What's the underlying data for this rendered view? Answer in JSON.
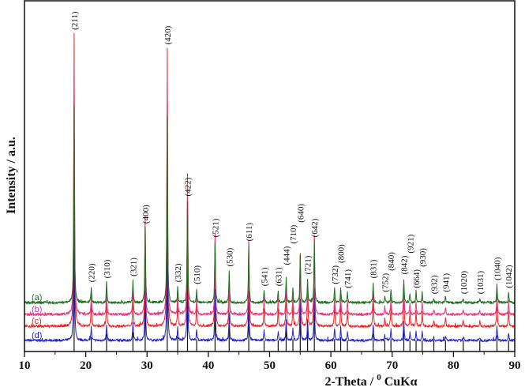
{
  "chart_data": {
    "type": "line",
    "title": "",
    "xlabel": "2-Theta / ⁰ CuKα",
    "xlabel_parts": {
      "pre": "2-Theta / ",
      "sup": "0",
      "post": " CuKα"
    },
    "ylabel": "Intensity / a.u.",
    "xlim": [
      10,
      90
    ],
    "ylim": [
      0,
      445
    ],
    "x_ticks": [
      10,
      20,
      30,
      40,
      50,
      60,
      70,
      80,
      90
    ],
    "x_minor_step": 5,
    "y_ticks": [],
    "grid": false,
    "legend": "inline-left",
    "series": [
      {
        "name": "(a)",
        "color": "#1d6e1d",
        "baseline": 62,
        "scale": 1.0
      },
      {
        "name": "(b)",
        "color": "#e23a7a",
        "label_color": "#cc33cc",
        "baseline": 47,
        "scale": 1.3
      },
      {
        "name": "(c)",
        "color": "#ee2222",
        "baseline": 32,
        "scale": 1.5
      },
      {
        "name": "(d)",
        "color": "#2222cc",
        "baseline": 14,
        "scale": 0.85
      }
    ],
    "reference_color": "#111111",
    "peaks": [
      {
        "hkl": "(211)",
        "two_theta": 18.1,
        "rel_intensity": 100
      },
      {
        "hkl": "(220)",
        "two_theta": 20.9,
        "rel_intensity": 8
      },
      {
        "hkl": "(310)",
        "two_theta": 23.4,
        "rel_intensity": 10
      },
      {
        "hkl": "(321)",
        "two_theta": 27.7,
        "rel_intensity": 11
      },
      {
        "hkl": "(400)",
        "two_theta": 29.7,
        "rel_intensity": 38
      },
      {
        "hkl": "(420)",
        "two_theta": 33.3,
        "rel_intensity": 95
      },
      {
        "hkl": "(332)",
        "two_theta": 35.0,
        "rel_intensity": 8
      },
      {
        "hkl": "(422)",
        "two_theta": 36.6,
        "rel_intensity": 52
      },
      {
        "hkl": "(510)",
        "two_theta": 38.1,
        "rel_intensity": 7
      },
      {
        "hkl": "(521)",
        "two_theta": 41.1,
        "rel_intensity": 31
      },
      {
        "hkl": "(530)",
        "two_theta": 43.4,
        "rel_intensity": 16
      },
      {
        "hkl": "(611)",
        "two_theta": 46.6,
        "rel_intensity": 29
      },
      {
        "hkl": "(541)",
        "two_theta": 49.1,
        "rel_intensity": 6
      },
      {
        "hkl": "(631)",
        "two_theta": 51.4,
        "rel_intensity": 6
      },
      {
        "hkl": "(444)",
        "two_theta": 52.7,
        "rel_intensity": 13
      },
      {
        "hkl": "(710)",
        "two_theta": 53.8,
        "rel_intensity": 7
      },
      {
        "hkl": "(640)",
        "two_theta": 55.0,
        "rel_intensity": 24
      },
      {
        "hkl": "(721)",
        "two_theta": 56.2,
        "rel_intensity": 12
      },
      {
        "hkl": "(642)",
        "two_theta": 57.3,
        "rel_intensity": 31
      },
      {
        "hkl": "(732)",
        "two_theta": 60.6,
        "rel_intensity": 7
      },
      {
        "hkl": "(800)",
        "two_theta": 61.6,
        "rel_intensity": 8
      },
      {
        "hkl": "(741)",
        "two_theta": 62.7,
        "rel_intensity": 5
      },
      {
        "hkl": "(831)",
        "two_theta": 66.9,
        "rel_intensity": 10
      },
      {
        "hkl": "(752)",
        "two_theta": 68.8,
        "rel_intensity": 3
      },
      {
        "hkl": "(840)",
        "two_theta": 69.8,
        "rel_intensity": 7
      },
      {
        "hkl": "(842)",
        "two_theta": 71.9,
        "rel_intensity": 12
      },
      {
        "hkl": "(921)",
        "two_theta": 72.9,
        "rel_intensity": 5
      },
      {
        "hkl": "(664)",
        "two_theta": 73.9,
        "rel_intensity": 5
      },
      {
        "hkl": "(930)",
        "two_theta": 74.9,
        "rel_intensity": 5
      },
      {
        "hkl": "(932)",
        "two_theta": 76.8,
        "rel_intensity": 2
      },
      {
        "hkl": "(941)",
        "two_theta": 78.7,
        "rel_intensity": 3
      },
      {
        "hkl": "(1020)",
        "two_theta": 81.6,
        "rel_intensity": 2
      },
      {
        "hkl": "(1031)",
        "two_theta": 84.3,
        "rel_intensity": 2
      },
      {
        "hkl": "(1040)",
        "two_theta": 87.1,
        "rel_intensity": 9
      },
      {
        "hkl": "(1042)",
        "two_theta": 89.0,
        "rel_intensity": 5
      }
    ]
  }
}
